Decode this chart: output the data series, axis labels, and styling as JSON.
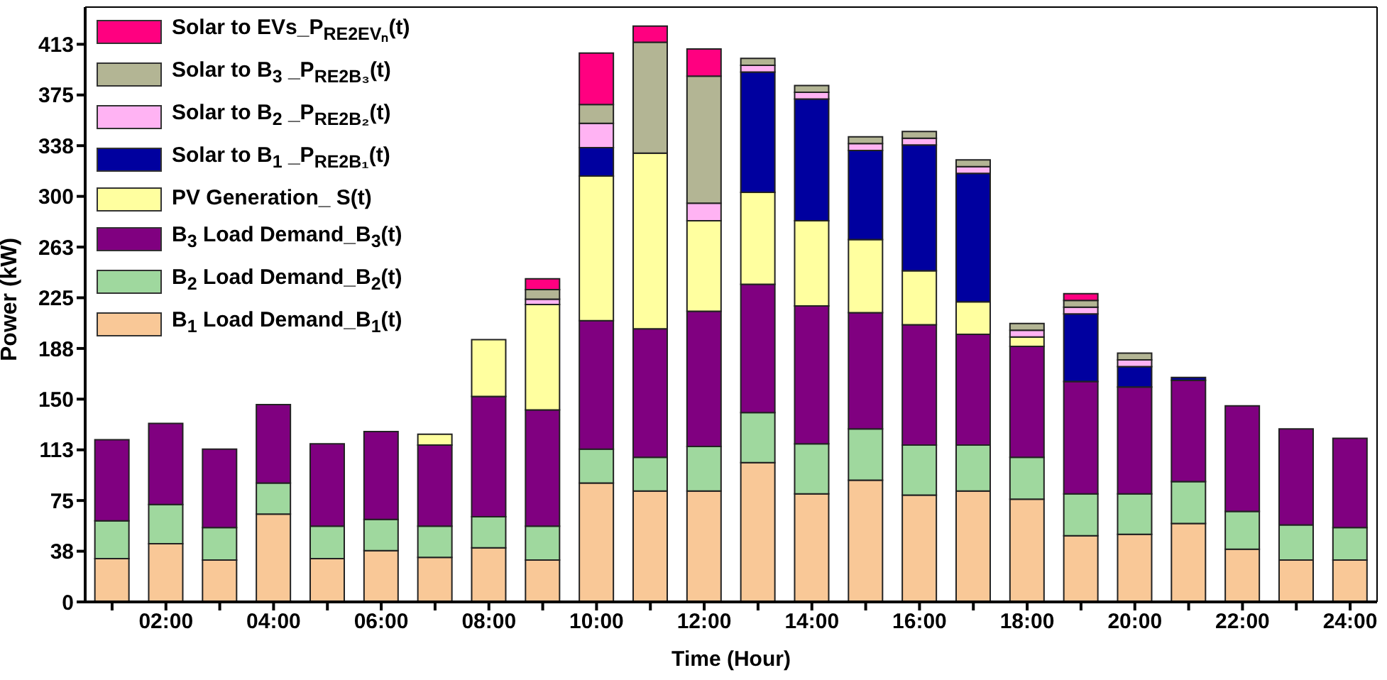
{
  "chart_data": {
    "type": "bar",
    "stacked": true,
    "xlabel": "Time (Hour)",
    "ylabel": "Power (kW)",
    "categories": [
      null,
      "02:00",
      null,
      "04:00",
      null,
      "06:00",
      null,
      "08:00",
      null,
      "10:00",
      null,
      "12:00",
      null,
      "14:00",
      null,
      "16:00",
      null,
      "18:00",
      null,
      "20:00",
      null,
      "22:00",
      null,
      "24:00"
    ],
    "series": [
      {
        "name": "B$_{1}$ Load Demand_B$_{1}$(t)",
        "color": "#f9c897",
        "values": [
          32,
          43,
          31,
          65,
          32,
          38,
          33,
          40,
          31,
          88,
          82,
          82,
          103,
          80,
          90,
          79,
          82,
          76,
          49,
          50,
          58,
          39,
          31,
          31
        ]
      },
      {
        "name": "B$_{2}$ Load Demand_B$_{2}$(t)",
        "color": "#9fd89e",
        "values": [
          28,
          29,
          24,
          23,
          24,
          23,
          23,
          23,
          25,
          25,
          25,
          33,
          37,
          37,
          38,
          37,
          34,
          31,
          31,
          30,
          31,
          28,
          26,
          24
        ]
      },
      {
        "name": "B$_{3}$ Load Demand_B$_{3}$(t)",
        "color": "#800080",
        "values": [
          60,
          60,
          58,
          58,
          61,
          65,
          60,
          89,
          86,
          95,
          95,
          100,
          95,
          102,
          86,
          89,
          82,
          82,
          83,
          79,
          75,
          78,
          71,
          66
        ]
      },
      {
        "name": "PV Generation_ S(t)",
        "color": "#ffff9f",
        "values": [
          null,
          null,
          null,
          null,
          null,
          null,
          8,
          42,
          78,
          107,
          130,
          67,
          68,
          63,
          54,
          40,
          24,
          7,
          null,
          null,
          null,
          null,
          null,
          null
        ]
      },
      {
        "name": "Solar to B$_{1}$ _P$_{RE2B₁}$(t)",
        "color": "#00009f",
        "values": [
          null,
          null,
          null,
          null,
          null,
          null,
          null,
          null,
          null,
          21,
          null,
          null,
          89,
          90,
          66,
          93,
          95,
          null,
          50,
          15,
          2,
          null,
          null,
          null
        ]
      },
      {
        "name": "Solar to B$_{2}$ _P$_{RE2B₂}$(t)",
        "color": "#ffb3f3",
        "values": [
          null,
          null,
          null,
          null,
          null,
          null,
          null,
          null,
          4,
          18,
          null,
          13,
          5,
          5,
          5,
          5,
          5,
          5,
          5,
          5,
          null,
          null,
          null,
          null
        ]
      },
      {
        "name": "Solar to B$_{3}$ _P$_{RE2B₃}$(t)",
        "color": "#b3b594",
        "values": [
          null,
          null,
          null,
          null,
          null,
          null,
          null,
          null,
          7,
          14,
          82,
          94,
          5,
          5,
          5,
          5,
          5,
          5,
          5,
          5,
          null,
          null,
          null,
          null
        ]
      },
      {
        "name": "Solar to EVs_P$_{RE2EVₙ}$(t)",
        "color": "#ff0080",
        "values": [
          null,
          null,
          null,
          null,
          null,
          null,
          null,
          null,
          8,
          38,
          12,
          20,
          null,
          null,
          null,
          null,
          null,
          null,
          5,
          null,
          null,
          null,
          null,
          null
        ]
      }
    ],
    "ylim": [
      0,
      440
    ],
    "yticks": [
      0,
      {
        "value": 37.5,
        "label": "38"
      },
      75,
      {
        "value": 112.5,
        "label": "113"
      },
      150,
      {
        "value": 187.5,
        "label": "188"
      },
      225,
      {
        "value": 262.5,
        "label": "263"
      },
      300,
      {
        "value": 337.5,
        "label": "338"
      },
      375,
      {
        "value": 412.5,
        "label": "413"
      }
    ],
    "grid": false,
    "legend": "top left"
  }
}
